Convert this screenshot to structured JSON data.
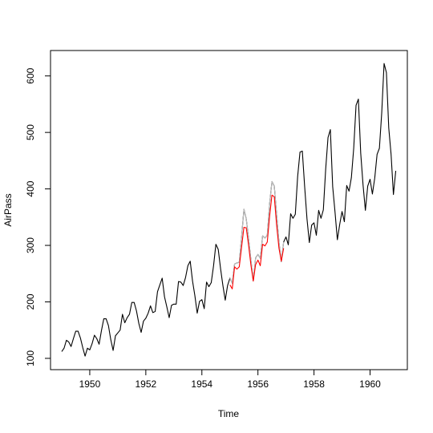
{
  "chart_data": {
    "type": "line",
    "title": "",
    "xlabel": "Time",
    "ylabel": "AirPass",
    "xlim": [
      1948.6,
      1961.33
    ],
    "ylim": [
      80,
      645
    ],
    "x_ticks": [
      1950,
      1952,
      1954,
      1956,
      1958,
      1960
    ],
    "y_ticks": [
      100,
      200,
      300,
      400,
      500,
      600
    ],
    "grid": false,
    "legend": "none",
    "colors": {
      "series": "#000000",
      "actual_overlay": "#bebebe",
      "forecast": "#ff0000"
    },
    "series": [
      {
        "start": 1949,
        "frequency": 12,
        "color": "#000000",
        "values": [
          112,
          118,
          132,
          129,
          121,
          135,
          148,
          148,
          136,
          119,
          104,
          118,
          115,
          126,
          141,
          135,
          125,
          149,
          170,
          170,
          158,
          133,
          114,
          140,
          145,
          150,
          178,
          163,
          172,
          178,
          199,
          199,
          184,
          162,
          146,
          166,
          171,
          180,
          193,
          181,
          183,
          218,
          230,
          242,
          209,
          191,
          172,
          194,
          196,
          196,
          236,
          235,
          229,
          243,
          264,
          272,
          237,
          211,
          180,
          201,
          204,
          188,
          235,
          227,
          234,
          264,
          302,
          293,
          259,
          229,
          203,
          229,
          242,
          233,
          267,
          269,
          270,
          315,
          364,
          347,
          312,
          274,
          237,
          278,
          284,
          277,
          317,
          313,
          318,
          374,
          413,
          405,
          355,
          306,
          271,
          306,
          315,
          301,
          356,
          348,
          355,
          422,
          465,
          467,
          404,
          347,
          305,
          336,
          340,
          318,
          362,
          348,
          363,
          435,
          491,
          505,
          404,
          359,
          310,
          337,
          360,
          342,
          406,
          396,
          420,
          472,
          548,
          559,
          463,
          407,
          362,
          405,
          417,
          391,
          419,
          461,
          472,
          535,
          622,
          606,
          508,
          461,
          390,
          432
        ]
      },
      {
        "start": 1955,
        "frequency": 12,
        "color": "#bebebe",
        "values": [
          242,
          233,
          267,
          269,
          270,
          315,
          364,
          347,
          312,
          274,
          237,
          278,
          284,
          277,
          317,
          313,
          318,
          374,
          413,
          405,
          355,
          306,
          271,
          306
        ]
      },
      {
        "start": 1955,
        "frequency": 12,
        "color": "#ff0000",
        "values": [
          230,
          223,
          262,
          258,
          262,
          297,
          332,
          331,
          300,
          265,
          237,
          266,
          274,
          264,
          302,
          299,
          306,
          352,
          389,
          386,
          336,
          295,
          272,
          295
        ]
      }
    ]
  }
}
